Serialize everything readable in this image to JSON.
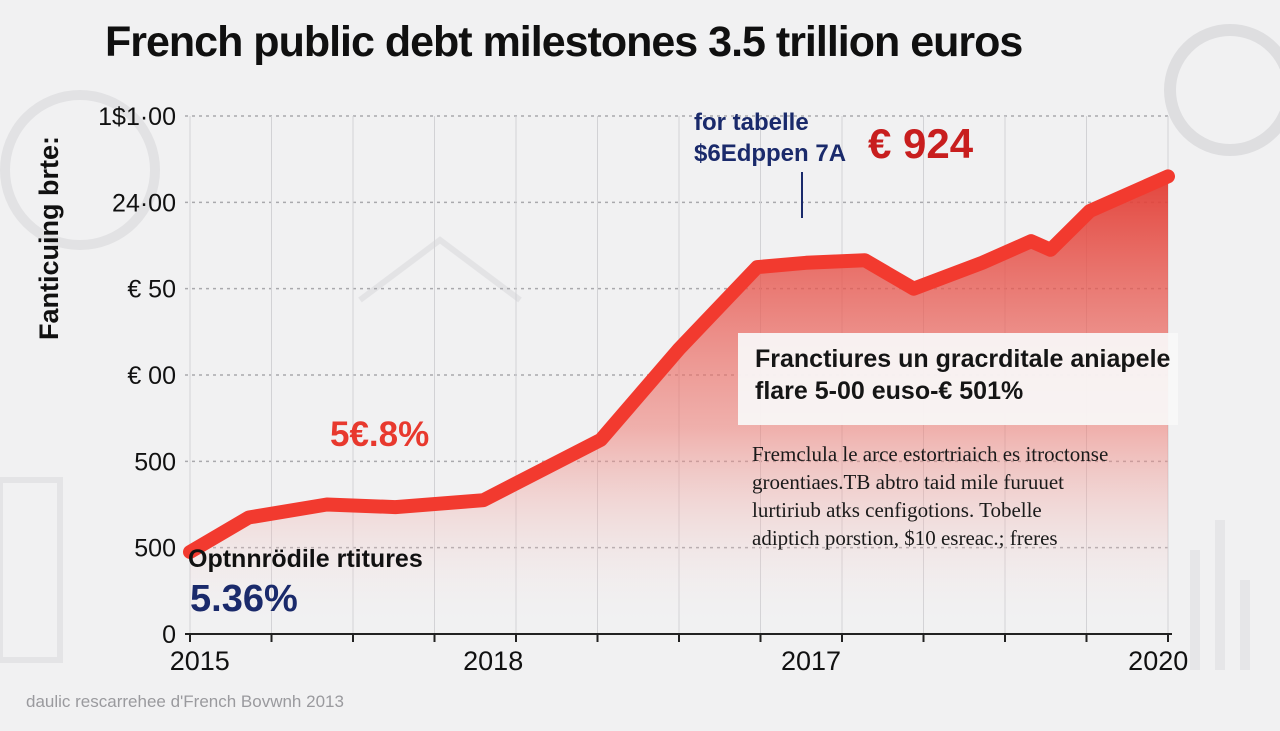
{
  "header": {
    "title": "French public debt milestones 3.5 trillion euros"
  },
  "chart_data": {
    "type": "area",
    "ylabel": "Fanticuing brte:",
    "grid": true,
    "series_color": "#f23a2f",
    "fill_color": "#e84a42",
    "y_tick_labels": [
      "0",
      "500",
      "500",
      "€ 00",
      "€ 50",
      "24·00",
      "1$1·00"
    ],
    "x_tick_labels": [
      "2015",
      "2018",
      "2017",
      "2020"
    ],
    "points": [
      {
        "x": 0.0,
        "y": 0.95
      },
      {
        "x": 0.06,
        "y": 1.35
      },
      {
        "x": 0.14,
        "y": 1.5
      },
      {
        "x": 0.21,
        "y": 1.47
      },
      {
        "x": 0.3,
        "y": 1.55
      },
      {
        "x": 0.3,
        "y": 1.55
      },
      {
        "x": 0.42,
        "y": 2.25
      },
      {
        "x": 0.5,
        "y": 3.3
      },
      {
        "x": 0.58,
        "y": 4.25
      },
      {
        "x": 0.63,
        "y": 4.3
      },
      {
        "x": 0.69,
        "y": 4.33
      },
      {
        "x": 0.74,
        "y": 4.0
      },
      {
        "x": 0.81,
        "y": 4.3
      },
      {
        "x": 0.86,
        "y": 4.55
      },
      {
        "x": 0.88,
        "y": 4.45
      },
      {
        "x": 0.92,
        "y": 4.9
      },
      {
        "x": 1.0,
        "y": 5.3
      }
    ],
    "y_max": 6
  },
  "annotations": {
    "top_label_line1": "for tabelle",
    "top_label_line2": "$6Edppen 7A",
    "top_value": "€ 924",
    "mid_value": "5€.8%",
    "bottom_left_label": "Optnnrödile rtitures",
    "bottom_left_value": "5.36%"
  },
  "callout": {
    "line1": "Franctiures un gracrditale aniapele",
    "line2": "flare 5-00 euso-€ 501%"
  },
  "description": {
    "line1": "Fremclula le arce estortriaich es itroctonse",
    "line2": "groentiaes.TB abtro taid mile furuuet",
    "line3": "lurtiriub atks cenfigotions. Tobelle",
    "line4": "adiptich porstion, $10 esreac.; freres"
  },
  "footer": {
    "source": "daulic rescarrehee d'French Bovwnh 2013"
  }
}
